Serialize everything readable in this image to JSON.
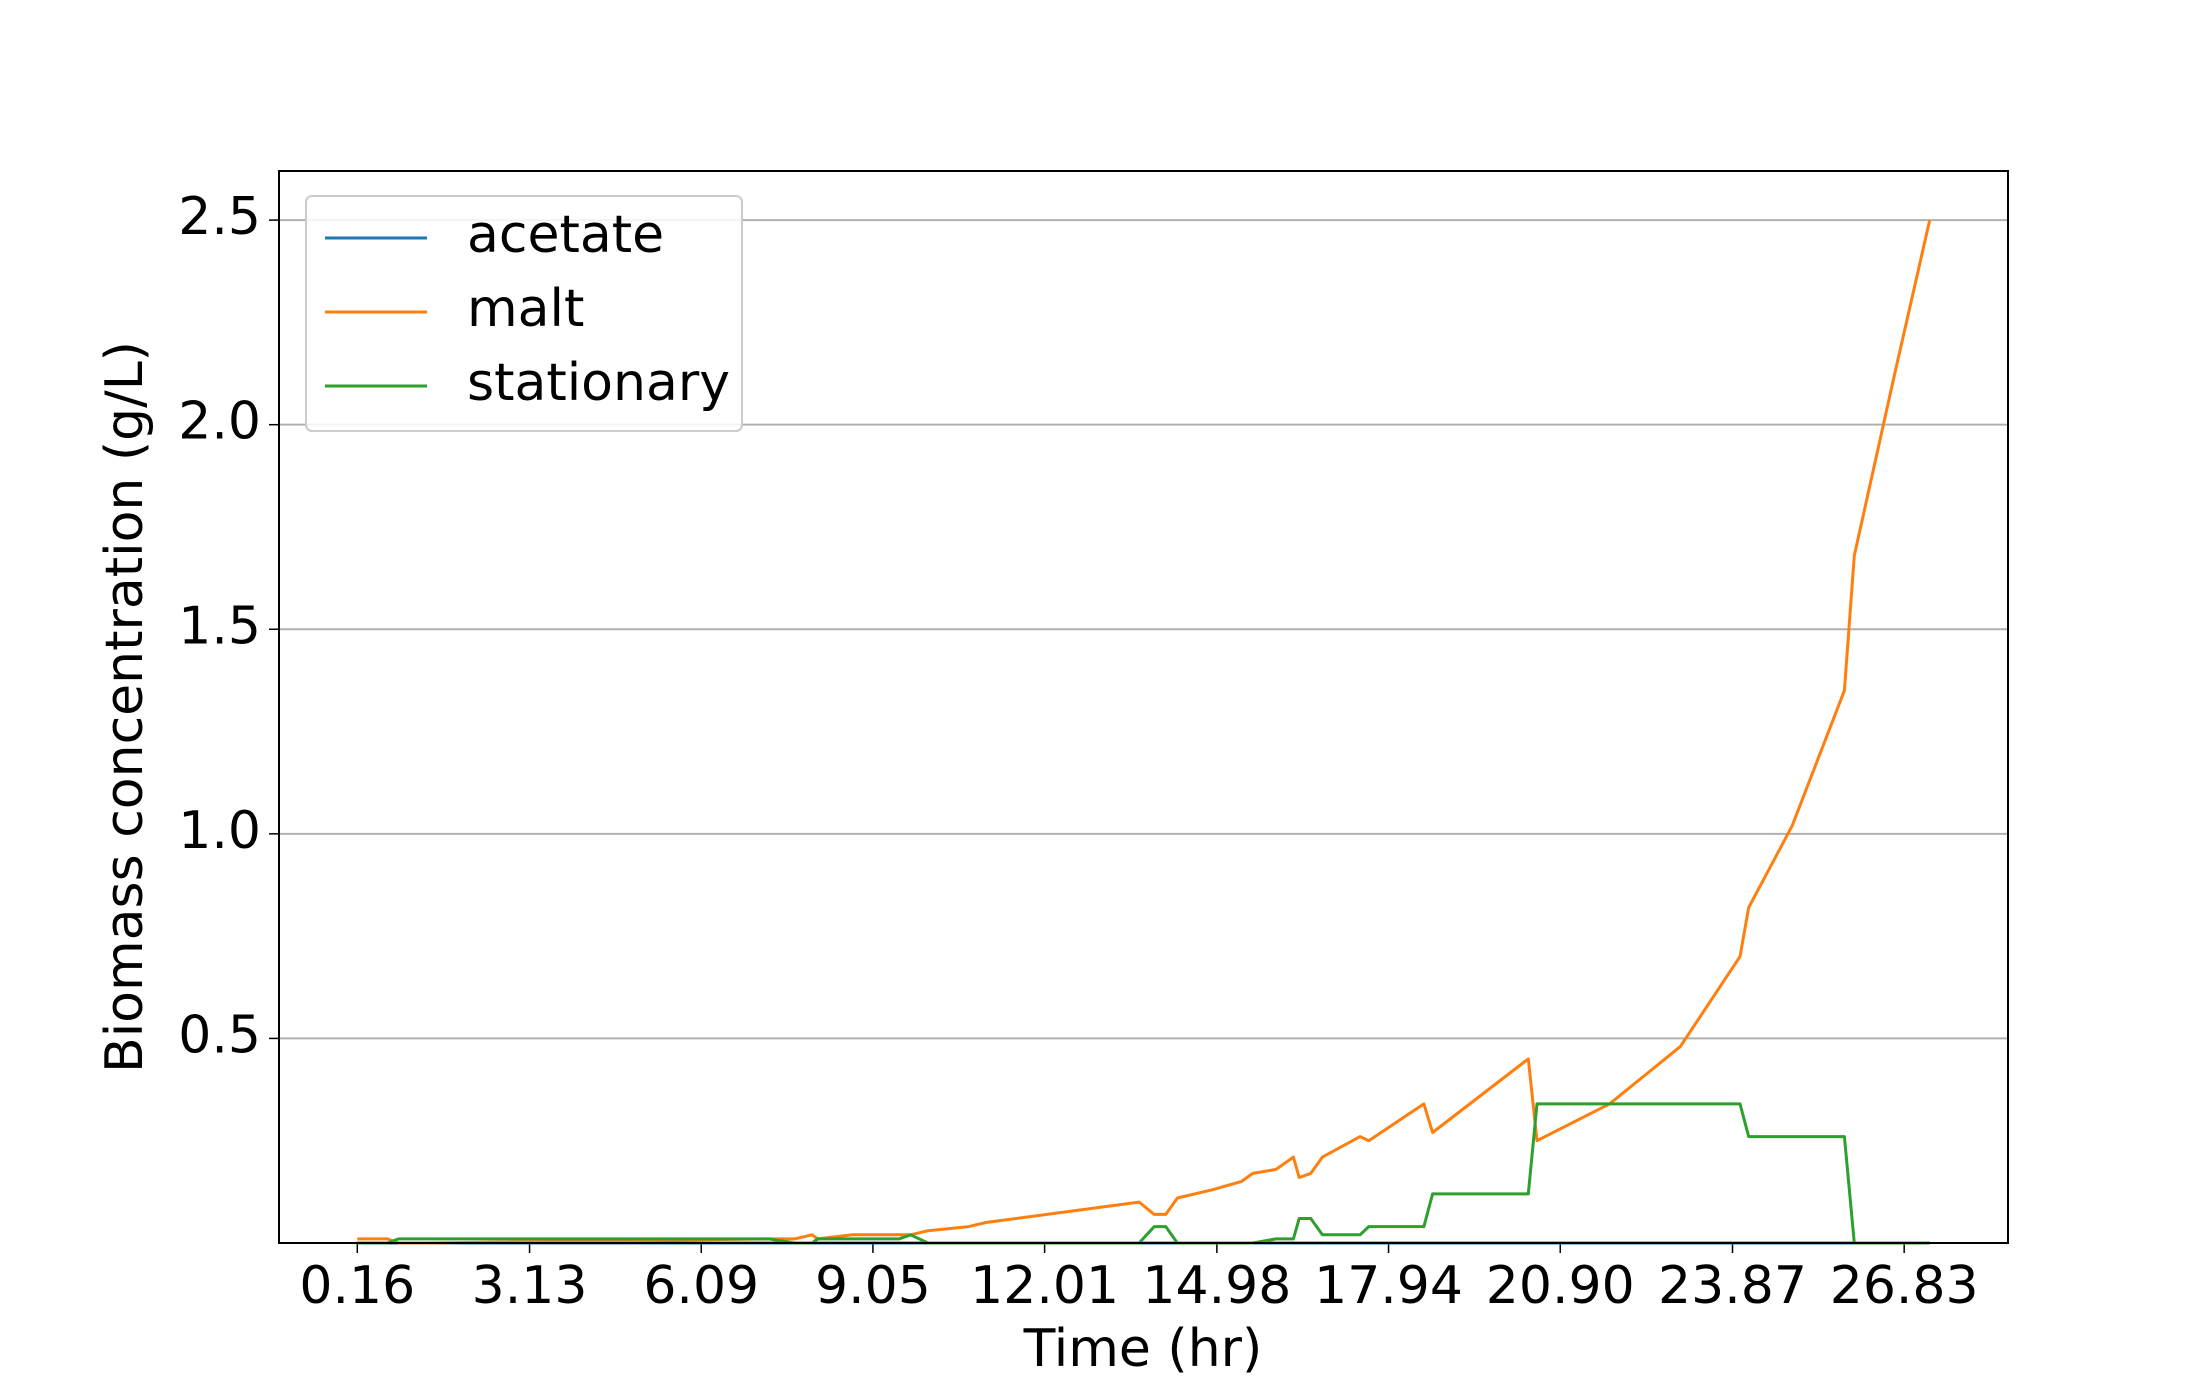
{
  "chart_data": {
    "type": "line",
    "xlabel": "Time (hr)",
    "ylabel": "Biomass concentration (g/L)",
    "x": [
      0.16,
      0.68,
      0.87,
      1.36,
      7.26,
      7.7,
      8.0,
      8.1,
      8.7,
      9.5,
      9.7,
      10.0,
      10.7,
      11.0,
      13.64,
      13.9,
      14.1,
      14.3,
      14.9,
      15.4,
      15.6,
      16.0,
      16.2,
      16.3,
      16.4,
      16.6,
      16.8,
      17.45,
      17.6,
      18.55,
      18.7,
      20.35,
      20.5,
      21.75,
      22.97,
      24.0,
      24.15,
      24.9,
      25.8,
      25.97,
      26.66,
      27.27
    ],
    "series": [
      {
        "name": "acetate",
        "color": "#1f77b4",
        "values": [
          0,
          0,
          0,
          0,
          0,
          0,
          0,
          0,
          0,
          0,
          0,
          0,
          0,
          0,
          0,
          0,
          0,
          0,
          0,
          0,
          0,
          0,
          0,
          0,
          0,
          0,
          0,
          0,
          0,
          0,
          0,
          0,
          0,
          0,
          0,
          0,
          0,
          0,
          0,
          0,
          0,
          0
        ]
      },
      {
        "name": "malt",
        "color": "#ff7f0e",
        "values": [
          0.01,
          0.01,
          0,
          0,
          0.01,
          0.01,
          0.02,
          0.01,
          0.02,
          0.02,
          0.02,
          0.03,
          0.04,
          0.05,
          0.1,
          0.07,
          0.07,
          0.11,
          0.13,
          0.15,
          0.17,
          0.18,
          0.2,
          0.21,
          0.16,
          0.17,
          0.21,
          0.26,
          0.25,
          0.34,
          0.27,
          0.45,
          0.25,
          0.34,
          0.48,
          0.7,
          0.82,
          1.02,
          1.35,
          1.68,
          2.12,
          2.5
        ]
      },
      {
        "name": "stationary",
        "color": "#2ca02c",
        "values": [
          0,
          0,
          0.01,
          0.01,
          0.01,
          0,
          0,
          0.01,
          0.01,
          0.01,
          0.02,
          0,
          0,
          0,
          0,
          0.04,
          0.04,
          0,
          0,
          0,
          0,
          0.01,
          0.01,
          0.01,
          0.06,
          0.06,
          0.02,
          0.02,
          0.04,
          0.04,
          0.12,
          0.12,
          0.34,
          0.34,
          0.34,
          0.34,
          0.26,
          0.26,
          0.26,
          0,
          0,
          0
        ]
      }
    ],
    "xlim": [
      -1.19,
      28.62
    ],
    "ylim": [
      0,
      2.62
    ],
    "xticks": [
      0.16,
      3.13,
      6.09,
      9.05,
      12.01,
      14.98,
      17.94,
      {
        "value": 20.9,
        "label": "20.90"
      },
      23.87,
      26.83
    ],
    "yticks": [
      0.5,
      {
        "value": 1,
        "label": "1.0"
      },
      1.5,
      {
        "value": 2,
        "label": "2.0"
      },
      2.5
    ],
    "grid": "y",
    "legend": "upper left"
  }
}
